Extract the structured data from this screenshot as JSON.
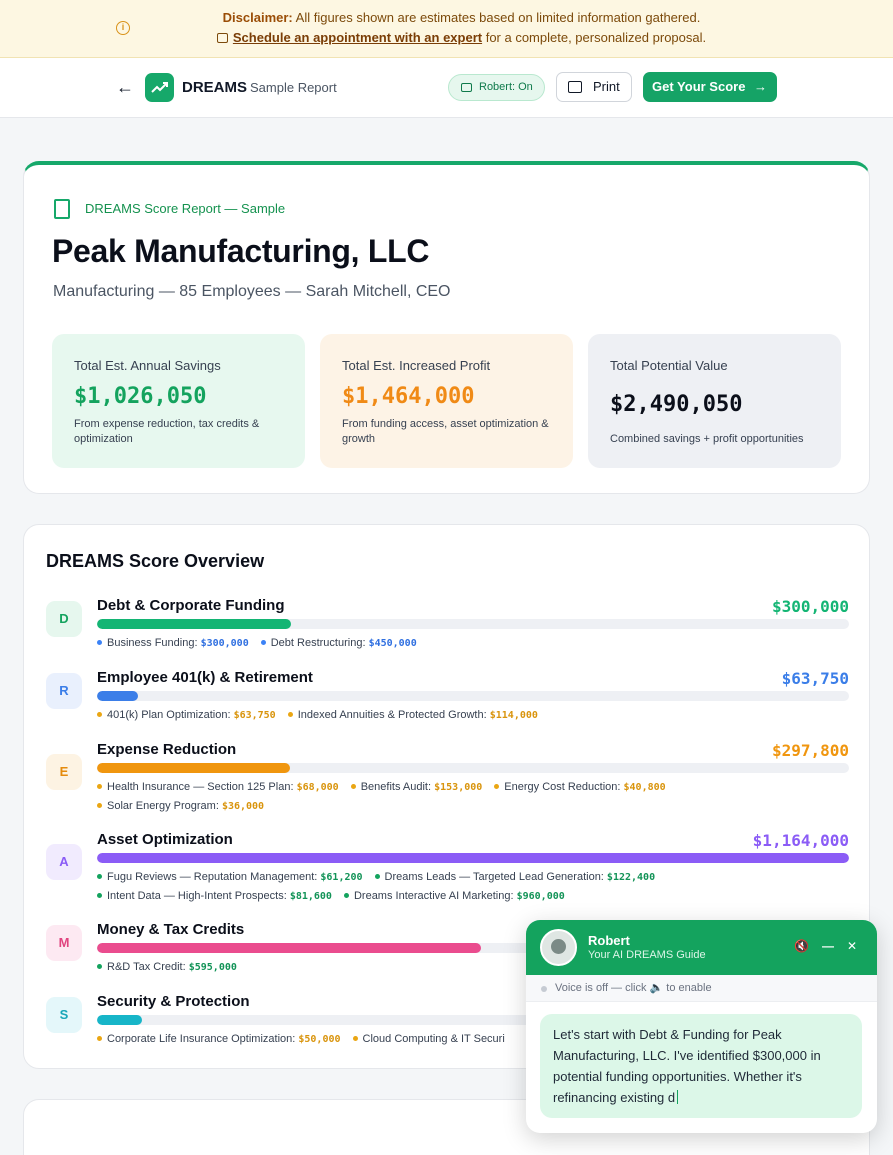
{
  "disclaimer": {
    "label": "Disclaimer:",
    "text": " All figures shown are estimates based on limited information gathered.",
    "link": "Schedule an appointment with an expert",
    "suffix": " for a complete, personalized proposal.",
    "icon": "info-icon"
  },
  "header": {
    "brand": "DREAMS",
    "subtitle": "Sample Report",
    "robert_status": "Robert: On",
    "print_label": "Print",
    "cta_label": "Get Your Score",
    "cta_arrow": "→",
    "back_arrow": "←"
  },
  "report": {
    "label": "DREAMS Score Report — Sample",
    "company": "Peak Manufacturing, LLC",
    "subtitle": "Manufacturing — 85 Employees — Sarah Mitchell, CEO",
    "stats": [
      {
        "label": "Total Est. Annual Savings",
        "value": "$1,026,050",
        "desc": "From expense reduction, tax credits & optimization"
      },
      {
        "label": "Total Est. Increased Profit",
        "value": "$1,464,000",
        "desc": "From funding access, asset optimization & growth"
      },
      {
        "label": "Total Potential Value",
        "value": "$2,490,050",
        "desc": "Combined savings + profit opportunities"
      }
    ]
  },
  "overview": {
    "title": "DREAMS Score Overview",
    "categories": [
      {
        "letter": "D",
        "name": "Debt & Corporate Funding",
        "amount": "$300,000",
        "fill": 0.258,
        "color": "#14b574",
        "items": [
          {
            "label": "Business Funding: ",
            "value": "$300,000",
            "color": "#3b82f6"
          },
          {
            "label": "Debt Restructuring: ",
            "value": "$450,000",
            "color": "#3b82f6"
          }
        ]
      },
      {
        "letter": "R",
        "name": "Employee 401(k) & Retirement",
        "amount": "$63,750",
        "fill": 0.055,
        "color": "#3b7ee8",
        "items": [
          {
            "label": "401(k) Plan Optimization: ",
            "value": "$63,750",
            "color": "#eaa613"
          },
          {
            "label": "Indexed Annuities & Protected Growth: ",
            "value": "$114,000",
            "color": "#eaa613"
          }
        ]
      },
      {
        "letter": "E",
        "name": "Expense Reduction",
        "amount": "$297,800",
        "fill": 0.256,
        "color": "#f0960f",
        "items": [
          {
            "label": "Health Insurance — Section 125 Plan: ",
            "value": "$68,000",
            "color": "#eaa613"
          },
          {
            "label": "Benefits Audit: ",
            "value": "$153,000",
            "color": "#eaa613"
          },
          {
            "label": "Energy Cost Reduction: ",
            "value": "$40,800",
            "color": "#eaa613"
          },
          {
            "label": "Solar Energy Program: ",
            "value": "$36,000",
            "color": "#eaa613"
          }
        ]
      },
      {
        "letter": "A",
        "name": "Asset Optimization",
        "amount": "$1,164,000",
        "fill": 1.0,
        "color": "#8b5cf6",
        "items": [
          {
            "label": "Fugu Reviews — Reputation Management: ",
            "value": "$61,200",
            "color": "#14a35e"
          },
          {
            "label": "Dreams Leads — Targeted Lead Generation: ",
            "value": "$122,400",
            "color": "#14a35e"
          },
          {
            "label": "Intent Data — High-Intent Prospects: ",
            "value": "$81,600",
            "color": "#14a35e"
          },
          {
            "label": "Dreams Interactive AI Marketing: ",
            "value": "$960,000",
            "color": "#14a35e"
          }
        ]
      },
      {
        "letter": "M",
        "name": "Money & Tax Credits",
        "amount": "",
        "fill": 0.511,
        "color": "#ea4c8e",
        "items": [
          {
            "label": "R&D Tax Credit: ",
            "value": "$595,000",
            "color": "#14a35e"
          }
        ]
      },
      {
        "letter": "S",
        "name": "Security & Protection",
        "amount": "",
        "fill": 0.06,
        "color": "#17b5c8",
        "items": [
          {
            "label": "Corporate Life Insurance Optimization: ",
            "value": "$50,000",
            "color": "#eaa613"
          },
          {
            "label": "Cloud Computing & IT Securi",
            "value": "",
            "color": "#eaa613"
          }
        ]
      }
    ]
  },
  "chat": {
    "name": "Robert",
    "role": "Your AI DREAMS Guide",
    "voice": "Voice is off — click 🔈 to enable",
    "message": "Let's start with Debt & Funding for Peak Manufacturing, LLC. I've identified $300,000 in potential funding opportunities. Whether it's refinancing existing d",
    "mute_icon": "🔇",
    "minimize_icon": "—",
    "close_icon": "✕"
  },
  "colors": {
    "accent": "#14a35e",
    "letter_styles": {
      "D": {
        "bg": "#e6f7ee",
        "fg": "#14a35e"
      },
      "R": {
        "bg": "#e9f0fd",
        "fg": "#3b7ee8"
      },
      "E": {
        "bg": "#fdf3e3",
        "fg": "#e58b0e"
      },
      "A": {
        "bg": "#f1ebfe",
        "fg": "#8b5cf6"
      },
      "M": {
        "bg": "#fde9f2",
        "fg": "#e0447f"
      },
      "S": {
        "bg": "#e4f7fa",
        "fg": "#17a6b8"
      }
    }
  }
}
